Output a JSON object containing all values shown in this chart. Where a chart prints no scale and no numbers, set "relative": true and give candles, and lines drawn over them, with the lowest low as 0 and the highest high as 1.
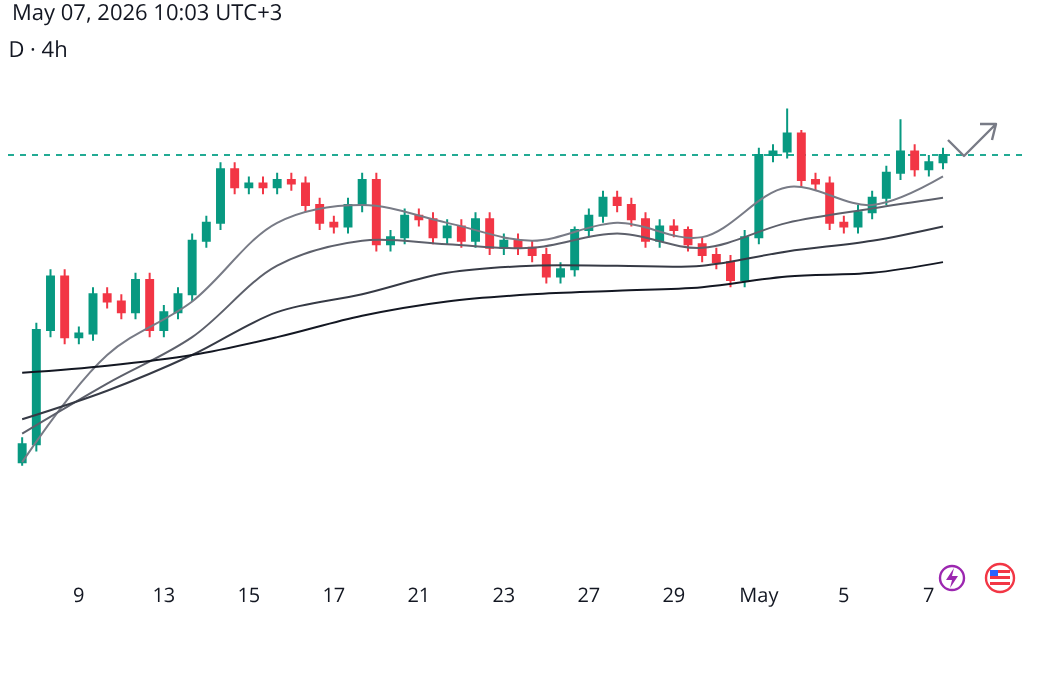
{
  "chart_data": {
    "type": "candlestick",
    "title": "D · 4h",
    "relative": true,
    "categories": [
      null,
      null,
      null,
      null,
      "9",
      null,
      null,
      null,
      null,
      null,
      "13",
      null,
      null,
      null,
      null,
      null,
      "15",
      null,
      null,
      null,
      null,
      null,
      "17",
      null,
      null,
      null,
      null,
      null,
      "21",
      null,
      null,
      null,
      null,
      null,
      "23",
      null,
      null,
      null,
      null,
      null,
      "27",
      null,
      null,
      null,
      null,
      null,
      "29",
      null,
      null,
      null,
      null,
      null,
      "May",
      null,
      null,
      null,
      null,
      null,
      "5",
      null,
      null,
      null,
      null,
      null,
      "7",
      null
    ],
    "ohlc": [
      [
        0.01,
        0.08,
        0,
        0.06
      ],
      [
        0.06,
        0.4,
        0.04,
        0.38
      ],
      [
        0.38,
        0.55,
        0.36,
        0.53
      ],
      [
        0.53,
        0.55,
        0.34,
        0.36
      ],
      [
        0.36,
        0.39,
        0.34,
        0.37
      ],
      [
        0.37,
        0.5,
        0.35,
        0.48
      ],
      [
        0.48,
        0.5,
        0.44,
        0.46
      ],
      [
        0.46,
        0.48,
        0.41,
        0.43
      ],
      [
        0.43,
        0.54,
        0.41,
        0.52
      ],
      [
        0.52,
        0.54,
        0.36,
        0.38
      ],
      [
        0.38,
        0.45,
        0.36,
        0.43
      ],
      [
        0.43,
        0.5,
        0.41,
        0.48
      ],
      [
        0.48,
        0.65,
        0.46,
        0.63
      ],
      [
        0.63,
        0.7,
        0.61,
        0.68
      ],
      [
        0.68,
        0.85,
        0.66,
        0.83
      ],
      [
        0.83,
        0.85,
        0.76,
        0.78
      ],
      [
        0.78,
        0.81,
        0.76,
        0.79
      ],
      [
        0.79,
        0.81,
        0.76,
        0.78
      ],
      [
        0.78,
        0.82,
        0.76,
        0.8
      ],
      [
        0.8,
        0.82,
        0.77,
        0.79
      ],
      [
        0.79,
        0.81,
        0.71,
        0.73
      ],
      [
        0.73,
        0.75,
        0.66,
        0.68
      ],
      [
        0.68,
        0.7,
        0.65,
        0.67
      ],
      [
        0.67,
        0.75,
        0.65,
        0.73
      ],
      [
        0.73,
        0.82,
        0.71,
        0.8
      ],
      [
        0.8,
        0.82,
        0.6,
        0.62
      ],
      [
        0.62,
        0.66,
        0.6,
        0.64
      ],
      [
        0.64,
        0.72,
        0.62,
        0.7
      ],
      [
        0.7,
        0.72,
        0.67,
        0.69
      ],
      [
        0.69,
        0.71,
        0.62,
        0.64
      ],
      [
        0.64,
        0.69,
        0.62,
        0.67
      ],
      [
        0.67,
        0.69,
        0.61,
        0.63
      ],
      [
        0.63,
        0.71,
        0.61,
        0.69
      ],
      [
        0.69,
        0.71,
        0.59,
        0.61
      ],
      [
        0.61,
        0.65,
        0.59,
        0.63
      ],
      [
        0.63,
        0.65,
        0.59,
        0.61
      ],
      [
        0.61,
        0.63,
        0.57,
        0.59
      ],
      [
        0.59,
        0.61,
        0.51,
        0.53
      ],
      [
        0.53,
        0.57,
        0.51,
        0.55
      ],
      [
        0.55,
        0.67,
        0.53,
        0.66
      ],
      [
        0.66,
        0.72,
        0.64,
        0.7
      ],
      [
        0.7,
        0.77,
        0.68,
        0.75
      ],
      [
        0.75,
        0.77,
        0.71,
        0.73
      ],
      [
        0.73,
        0.75,
        0.67,
        0.69
      ],
      [
        0.69,
        0.71,
        0.61,
        0.63
      ],
      [
        0.63,
        0.69,
        0.61,
        0.67
      ],
      [
        0.67,
        0.69,
        0.64,
        0.66
      ],
      [
        0.66,
        0.67,
        0.6,
        0.62
      ],
      [
        0.62,
        0.64,
        0.57,
        0.59
      ],
      [
        0.59,
        0.61,
        0.55,
        0.57
      ],
      [
        0.57,
        0.59,
        0.5,
        0.52
      ],
      [
        0.52,
        0.66,
        0.5,
        0.64
      ],
      [
        0.64,
        0.89,
        0.62,
        0.87
      ],
      [
        0.87,
        0.9,
        0.85,
        0.88
      ],
      [
        0.88,
        1,
        0.86,
        0.93
      ],
      [
        0.93,
        0.94,
        0.78,
        0.8
      ],
      [
        0.8,
        0.82,
        0.77,
        0.79
      ],
      [
        0.79,
        0.81,
        0.66,
        0.68
      ],
      [
        0.68,
        0.7,
        0.65,
        0.67
      ],
      [
        0.67,
        0.73,
        0.65,
        0.71
      ],
      [
        0.71,
        0.77,
        0.69,
        0.75
      ],
      [
        0.75,
        0.84,
        0.73,
        0.82
      ],
      [
        0.82,
        0.97,
        0.8,
        0.88
      ],
      [
        0.88,
        0.9,
        0.81,
        0.83
      ],
      [
        0.83,
        0.87,
        0.81,
        0.85
      ],
      [
        0.85,
        0.89,
        0.83,
        0.87
      ]
    ],
    "series": [
      {
        "type": "line",
        "color": "#787b86",
        "values": [
          0.01,
          null,
          null,
          null,
          null,
          null,
          0.31,
          null,
          null,
          null,
          null,
          null,
          0.46,
          null,
          null,
          null,
          null,
          null,
          0.68,
          null,
          null,
          null,
          null,
          null,
          0.73,
          null,
          null,
          null,
          null,
          null,
          0.68,
          null,
          null,
          null,
          null,
          null,
          0.63,
          null,
          null,
          null,
          null,
          null,
          0.68,
          null,
          null,
          null,
          null,
          null,
          0.64,
          null,
          null,
          null,
          null,
          null,
          0.78,
          null,
          null,
          null,
          null,
          null,
          0.73,
          null,
          null,
          null,
          null,
          0.81
        ]
      },
      {
        "type": "line",
        "color": "#5d606b",
        "values": [
          0.09,
          null,
          null,
          null,
          null,
          null,
          0.23,
          null,
          null,
          null,
          null,
          null,
          0.36,
          null,
          null,
          null,
          null,
          null,
          0.56,
          null,
          null,
          null,
          null,
          null,
          0.63,
          null,
          null,
          null,
          null,
          null,
          0.62,
          null,
          null,
          null,
          null,
          null,
          0.61,
          null,
          null,
          null,
          null,
          null,
          0.65,
          null,
          null,
          null,
          null,
          null,
          0.61,
          null,
          null,
          null,
          null,
          null,
          0.68,
          null,
          null,
          null,
          null,
          null,
          0.72,
          null,
          null,
          null,
          null,
          0.75
        ]
      },
      {
        "type": "line",
        "color": "#363a45",
        "values": [
          0.13,
          null,
          null,
          null,
          null,
          null,
          0.21,
          null,
          null,
          null,
          null,
          null,
          0.31,
          null,
          null,
          null,
          null,
          null,
          0.43,
          null,
          null,
          null,
          null,
          null,
          0.48,
          null,
          null,
          null,
          null,
          null,
          0.54,
          null,
          null,
          null,
          null,
          null,
          0.56,
          null,
          null,
          null,
          null,
          null,
          0.56,
          null,
          null,
          null,
          null,
          null,
          0.56,
          null,
          null,
          null,
          null,
          null,
          0.6,
          null,
          null,
          null,
          null,
          null,
          0.63,
          null,
          null,
          null,
          null,
          0.67
        ]
      },
      {
        "type": "line",
        "color": "#131722",
        "values": [
          0.26,
          null,
          null,
          null,
          null,
          null,
          0.28,
          null,
          null,
          null,
          null,
          null,
          0.31,
          null,
          null,
          null,
          null,
          null,
          0.36,
          null,
          null,
          null,
          null,
          null,
          0.42,
          null,
          null,
          null,
          null,
          null,
          0.46,
          null,
          null,
          null,
          null,
          null,
          0.48,
          null,
          null,
          null,
          null,
          null,
          0.49,
          null,
          null,
          null,
          null,
          null,
          0.5,
          null,
          null,
          null,
          null,
          null,
          0.53,
          null,
          null,
          null,
          null,
          null,
          0.54,
          null,
          null,
          null,
          null,
          0.57
        ]
      }
    ],
    "ref_lines": [
      {
        "axis": "y",
        "value": 0.87,
        "color": "#22ab94",
        "line_style": "dotted"
      }
    ],
    "annotations": [
      "May 07, 2026 10:03 UTC+3"
    ]
  }
}
